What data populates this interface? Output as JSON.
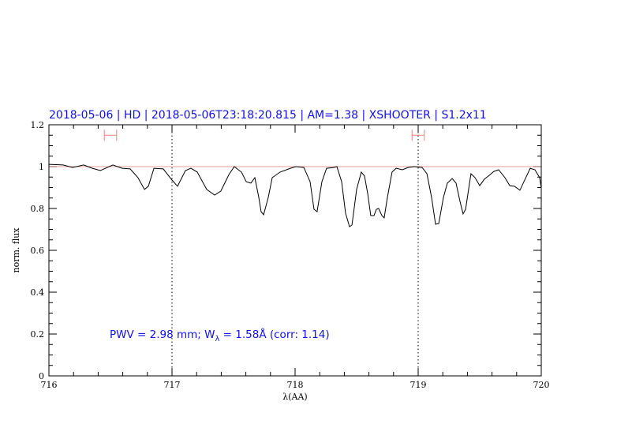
{
  "title": "2018-05-06 | HD | 2018-05-06T23:18:20.815 | AM=1.38 | XSHOOTER | S1.2x11",
  "annotation": {
    "prefix": "PWV = 2.98 mm; W",
    "subscript": "λ",
    "suffix": " = 1.58Å (corr: 1.14)"
  },
  "colors": {
    "title": "#1010ee",
    "spectrum": "#000000",
    "continuum": "#e07070",
    "markers": "#f08080"
  },
  "chart_data": {
    "type": "line",
    "title": "2018-05-06 | HD | 2018-05-06T23:18:20.815 | AM=1.38 | XSHOOTER | S1.2x11",
    "xlabel": "λ(AA)",
    "ylabel": "norm. flux",
    "xlim": [
      716,
      720
    ],
    "ylim": [
      0,
      1.2
    ],
    "xticks": [
      716,
      717,
      718,
      719,
      720
    ],
    "xtick_labels": [
      "716",
      "717",
      "718",
      "719",
      "720"
    ],
    "yticks": [
      0,
      0.2,
      0.4,
      0.6,
      0.8,
      1,
      1.2
    ],
    "ytick_labels": [
      "0",
      "0.2",
      "0.4",
      "0.6",
      "0.8",
      "1",
      "1.2"
    ],
    "grid": false,
    "continuum_level": 1.0,
    "vertical_dotted_lines": [
      717,
      719
    ],
    "range_markers": [
      {
        "x_min": 716.45,
        "x_max": 716.55,
        "y": 1.15
      },
      {
        "x_min": 718.95,
        "x_max": 719.05,
        "y": 1.15
      }
    ],
    "series": [
      {
        "x": [
          716.0,
          716.115,
          716.192,
          716.282,
          716.353,
          716.417,
          716.519,
          716.596,
          716.66,
          716.724,
          716.776,
          716.808,
          716.853,
          716.929,
          717.0,
          717.045,
          717.109,
          717.154,
          717.205,
          717.282,
          717.346,
          717.397,
          717.462,
          717.506,
          717.564,
          717.603,
          717.641,
          717.673,
          717.705,
          717.724,
          717.744,
          717.782,
          717.814,
          717.878,
          717.962,
          718.006,
          718.071,
          718.122,
          718.154,
          718.179,
          718.218,
          718.256,
          718.314,
          718.34,
          718.378,
          718.41,
          718.442,
          718.462,
          718.5,
          718.538,
          718.564,
          718.59,
          718.615,
          718.641,
          718.66,
          718.679,
          718.705,
          718.724,
          718.75,
          718.788,
          718.821,
          718.872,
          718.917,
          718.968,
          719.032,
          719.071,
          719.109,
          719.141,
          719.167,
          719.205,
          719.237,
          719.276,
          719.308,
          719.34,
          719.365,
          719.385,
          719.429,
          719.462,
          719.5,
          719.538,
          719.577,
          719.615,
          719.654,
          719.705,
          719.744,
          719.782,
          719.827,
          719.859,
          719.91,
          719.949,
          719.987,
          720.0
        ],
        "y": [
          1.011,
          1.008,
          0.996,
          1.008,
          0.992,
          0.981,
          1.008,
          0.992,
          0.989,
          0.947,
          0.891,
          0.906,
          0.992,
          0.989,
          0.936,
          0.906,
          0.981,
          0.992,
          0.974,
          0.891,
          0.864,
          0.883,
          0.962,
          1.0,
          0.974,
          0.928,
          0.921,
          0.947,
          0.853,
          0.785,
          0.77,
          0.853,
          0.947,
          0.974,
          0.992,
          1.0,
          0.996,
          0.928,
          0.796,
          0.785,
          0.928,
          0.992,
          0.996,
          1.0,
          0.928,
          0.777,
          0.713,
          0.721,
          0.891,
          0.974,
          0.955,
          0.872,
          0.766,
          0.766,
          0.796,
          0.8,
          0.766,
          0.755,
          0.853,
          0.974,
          0.992,
          0.985,
          0.996,
          1.0,
          0.996,
          0.966,
          0.853,
          0.725,
          0.728,
          0.853,
          0.921,
          0.943,
          0.921,
          0.834,
          0.774,
          0.796,
          0.966,
          0.947,
          0.909,
          0.94,
          0.958,
          0.977,
          0.985,
          0.947,
          0.909,
          0.906,
          0.887,
          0.928,
          0.992,
          0.985,
          0.947,
          0.898
        ]
      }
    ]
  }
}
